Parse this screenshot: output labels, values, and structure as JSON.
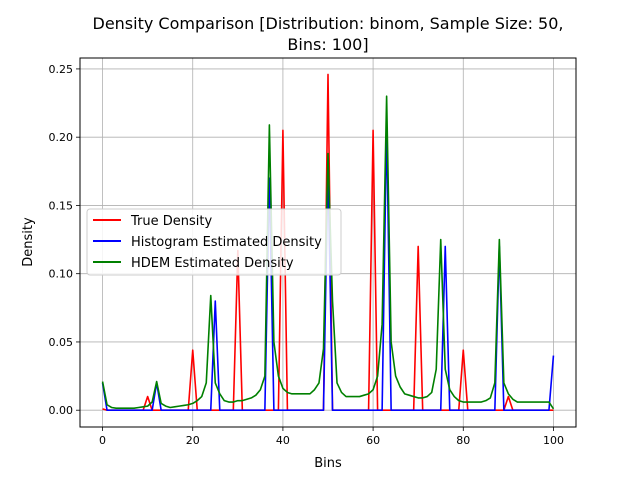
{
  "chart_data": {
    "type": "line",
    "title_line1": "Density Comparison [Distribution: binom, Sample Size: 50,",
    "title_line2": "Bins: 100]",
    "xlabel": "Bins",
    "ylabel": "Density",
    "xlim": [
      -5,
      105
    ],
    "ylim": [
      -0.0123,
      0.258
    ],
    "xticks": [
      0,
      20,
      40,
      60,
      80,
      100
    ],
    "yticks": [
      0.0,
      0.05,
      0.1,
      0.15,
      0.2,
      0.25
    ],
    "xtick_labels": [
      "0",
      "20",
      "40",
      "60",
      "80",
      "100"
    ],
    "ytick_labels": [
      "0.00",
      "0.05",
      "0.10",
      "0.15",
      "0.20",
      "0.25"
    ],
    "grid": true,
    "legend_location": "center-left",
    "series": [
      {
        "name": "True Density",
        "color": "#ff0000",
        "x": [
          0,
          1,
          2,
          3,
          4,
          5,
          6,
          7,
          8,
          9,
          10,
          11,
          12,
          13,
          14,
          15,
          16,
          17,
          18,
          19,
          20,
          21,
          22,
          23,
          24,
          25,
          26,
          27,
          28,
          29,
          30,
          31,
          32,
          33,
          34,
          35,
          36,
          37,
          38,
          39,
          40,
          41,
          42,
          43,
          44,
          45,
          46,
          47,
          48,
          49,
          50,
          51,
          52,
          53,
          54,
          55,
          56,
          57,
          58,
          59,
          60,
          61,
          62,
          63,
          64,
          65,
          66,
          67,
          68,
          69,
          70,
          71,
          72,
          73,
          74,
          75,
          76,
          77,
          78,
          79,
          80,
          81,
          82,
          83,
          84,
          85,
          86,
          87,
          88,
          89,
          90,
          91,
          92,
          93,
          94,
          95,
          96,
          97,
          98,
          99,
          100
        ],
        "values": [
          0.001,
          0,
          0,
          0,
          0,
          0,
          0,
          0,
          0,
          0,
          0.01,
          0,
          0,
          0,
          0,
          0,
          0,
          0,
          0,
          0,
          0.044,
          0,
          0,
          0,
          0,
          0,
          0,
          0,
          0,
          0,
          0.117,
          0,
          0,
          0,
          0,
          0,
          0,
          0,
          0,
          0,
          0.205,
          0,
          0,
          0,
          0,
          0,
          0,
          0,
          0,
          0,
          0.246,
          0,
          0,
          0,
          0,
          0,
          0,
          0,
          0,
          0,
          0.205,
          0,
          0,
          0,
          0,
          0,
          0,
          0,
          0,
          0,
          0.12,
          0,
          0,
          0,
          0,
          0,
          0,
          0,
          0,
          0,
          0.044,
          0,
          0,
          0,
          0,
          0,
          0,
          0,
          0,
          0,
          0.01,
          0,
          0,
          0,
          0,
          0,
          0,
          0,
          0,
          0,
          0
        ]
      },
      {
        "name": "Histogram Estimated Density",
        "color": "#0000ff",
        "x": [
          0,
          1,
          2,
          3,
          4,
          5,
          6,
          7,
          8,
          9,
          10,
          11,
          12,
          13,
          14,
          15,
          16,
          17,
          18,
          19,
          20,
          21,
          22,
          23,
          24,
          25,
          26,
          27,
          28,
          29,
          30,
          31,
          32,
          33,
          34,
          35,
          36,
          37,
          38,
          39,
          40,
          41,
          42,
          43,
          44,
          45,
          46,
          47,
          48,
          49,
          50,
          51,
          52,
          53,
          54,
          55,
          56,
          57,
          58,
          59,
          60,
          61,
          62,
          63,
          64,
          65,
          66,
          67,
          68,
          69,
          70,
          71,
          72,
          73,
          74,
          75,
          76,
          77,
          78,
          79,
          80,
          81,
          82,
          83,
          84,
          85,
          86,
          87,
          88,
          89,
          90,
          91,
          92,
          93,
          94,
          95,
          96,
          97,
          98,
          99,
          100
        ],
        "values": [
          0.02,
          0,
          0,
          0,
          0,
          0,
          0,
          0,
          0,
          0,
          0,
          0,
          0.02,
          0,
          0,
          0,
          0,
          0,
          0,
          0,
          0,
          0,
          0,
          0,
          0,
          0.08,
          0,
          0,
          0,
          0,
          0,
          0,
          0,
          0,
          0,
          0,
          0,
          0.17,
          0,
          0,
          0,
          0,
          0,
          0,
          0,
          0,
          0,
          0,
          0,
          0,
          0.18,
          0,
          0,
          0,
          0,
          0,
          0,
          0,
          0,
          0,
          0,
          0,
          0,
          0.21,
          0,
          0,
          0,
          0,
          0,
          0,
          0,
          0,
          0,
          0,
          0,
          0,
          0.12,
          0,
          0,
          0,
          0,
          0,
          0,
          0,
          0,
          0,
          0,
          0,
          0.12,
          0,
          0,
          0,
          0,
          0,
          0,
          0,
          0,
          0,
          0,
          0,
          0.04
        ]
      },
      {
        "name": "HDEM Estimated Density",
        "color": "#008000",
        "x": [
          0,
          1,
          2,
          3,
          4,
          5,
          6,
          7,
          8,
          9,
          10,
          11,
          12,
          13,
          14,
          15,
          16,
          17,
          18,
          19,
          20,
          21,
          22,
          23,
          24,
          25,
          26,
          27,
          28,
          29,
          30,
          31,
          32,
          33,
          34,
          35,
          36,
          37,
          38,
          39,
          40,
          41,
          42,
          43,
          44,
          45,
          46,
          47,
          48,
          49,
          50,
          51,
          52,
          53,
          54,
          55,
          56,
          57,
          58,
          59,
          60,
          61,
          62,
          63,
          64,
          65,
          66,
          67,
          68,
          69,
          70,
          71,
          72,
          73,
          74,
          75,
          76,
          77,
          78,
          79,
          80,
          81,
          82,
          83,
          84,
          85,
          86,
          87,
          88,
          89,
          90,
          91,
          92,
          93,
          94,
          95,
          96,
          97,
          98,
          99,
          100
        ],
        "values": [
          0.021,
          0.004,
          0.002,
          0.0015,
          0.0015,
          0.0015,
          0.0015,
          0.0015,
          0.002,
          0.0025,
          0.003,
          0.006,
          0.021,
          0.005,
          0.003,
          0.002,
          0.0025,
          0.003,
          0.0035,
          0.004,
          0.005,
          0.007,
          0.01,
          0.02,
          0.084,
          0.02,
          0.012,
          0.007,
          0.006,
          0.006,
          0.007,
          0.007,
          0.008,
          0.009,
          0.011,
          0.015,
          0.025,
          0.209,
          0.05,
          0.025,
          0.016,
          0.013,
          0.012,
          0.012,
          0.012,
          0.012,
          0.012,
          0.015,
          0.02,
          0.045,
          0.188,
          0.08,
          0.02,
          0.013,
          0.01,
          0.01,
          0.01,
          0.01,
          0.011,
          0.012,
          0.015,
          0.025,
          0.063,
          0.23,
          0.05,
          0.025,
          0.017,
          0.012,
          0.011,
          0.01,
          0.009,
          0.009,
          0.01,
          0.013,
          0.03,
          0.125,
          0.03,
          0.015,
          0.01,
          0.007,
          0.006,
          0.006,
          0.006,
          0.006,
          0.006,
          0.007,
          0.009,
          0.02,
          0.125,
          0.02,
          0.012,
          0.008,
          0.006,
          0.006,
          0.006,
          0.006,
          0.006,
          0.006,
          0.006,
          0.006,
          0.001
        ]
      }
    ]
  }
}
